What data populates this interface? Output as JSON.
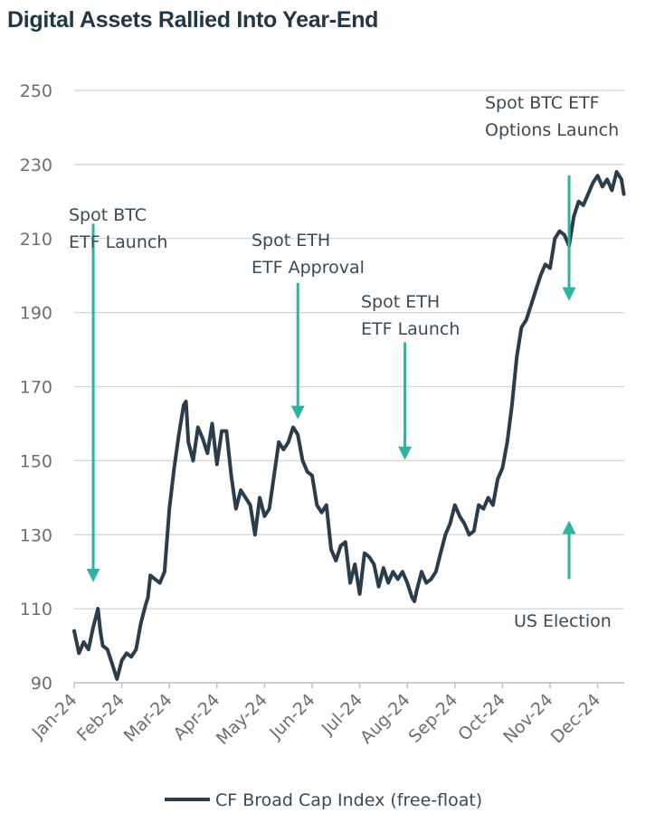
{
  "title": "Digital Assets Rallied Into Year-End",
  "chart_data": {
    "type": "line",
    "title": "Digital Assets Rallied Into Year-End",
    "ylim": [
      90,
      250
    ],
    "yticks": [
      90,
      110,
      130,
      150,
      170,
      190,
      210,
      230,
      250
    ],
    "grid": true,
    "xtick_labels": [
      "Jan-24",
      "Feb-24",
      "Mar-24",
      "Apr-24",
      "May-24",
      "Jun-24",
      "Jul-24",
      "Aug-24",
      "Sep-24",
      "Oct-24",
      "Nov-24",
      "Dec-24"
    ],
    "legend": {
      "position": "bottom-center",
      "entries": [
        "CF Broad Cap Index (free-float)"
      ]
    },
    "colors": {
      "line": "#2a3d4c",
      "arrow": "#2bb5a0",
      "grid": "#d4d4d4"
    },
    "series": [
      {
        "name": "CF Broad Cap Index (free-float)",
        "x": [
          0,
          0.1,
          0.2,
          0.3,
          0.4,
          0.5,
          0.55,
          0.6,
          0.7,
          0.8,
          0.9,
          1.0,
          1.1,
          1.2,
          1.3,
          1.4,
          1.5,
          1.55,
          1.6,
          1.7,
          1.8,
          1.9,
          2.0,
          2.1,
          2.2,
          2.3,
          2.35,
          2.4,
          2.5,
          2.6,
          2.7,
          2.8,
          2.9,
          3.0,
          3.1,
          3.2,
          3.3,
          3.4,
          3.5,
          3.6,
          3.7,
          3.8,
          3.9,
          4.0,
          4.1,
          4.2,
          4.3,
          4.4,
          4.5,
          4.6,
          4.7,
          4.8,
          4.9,
          5.0,
          5.1,
          5.2,
          5.3,
          5.4,
          5.5,
          5.6,
          5.7,
          5.8,
          5.9,
          6.0,
          6.1,
          6.2,
          6.3,
          6.4,
          6.5,
          6.6,
          6.7,
          6.8,
          6.9,
          7.0,
          7.1,
          7.15,
          7.2,
          7.3,
          7.4,
          7.5,
          7.6,
          7.7,
          7.8,
          7.9,
          8.0,
          8.1,
          8.2,
          8.3,
          8.4,
          8.5,
          8.6,
          8.7,
          8.8,
          8.9,
          9.0,
          9.1,
          9.2,
          9.3,
          9.4,
          9.5,
          9.6,
          9.7,
          9.8,
          9.9,
          10.0,
          10.1,
          10.2,
          10.3,
          10.4,
          10.5,
          10.6,
          10.7,
          10.8,
          10.9,
          11.0,
          11.1,
          11.2,
          11.3,
          11.4,
          11.5,
          11.55
        ],
        "values": [
          104,
          98,
          101,
          99,
          105,
          110,
          104,
          100,
          99,
          95,
          91,
          96,
          98,
          97,
          99,
          106,
          111,
          113,
          119,
          118,
          117,
          120,
          137,
          148,
          157,
          165,
          166,
          155,
          150,
          159,
          156,
          152,
          160,
          149,
          158,
          158,
          146,
          137,
          142,
          140,
          138,
          130,
          140,
          135,
          137,
          146,
          155,
          153,
          155,
          159,
          157,
          150,
          147,
          146,
          138,
          136,
          138,
          126,
          123,
          127,
          128,
          117,
          122,
          114,
          125,
          124,
          122,
          116,
          121,
          117,
          120,
          118,
          120,
          117,
          113,
          112,
          115,
          120,
          117,
          118,
          120,
          125,
          130,
          133,
          138,
          135,
          133,
          130,
          131,
          138,
          137,
          140,
          138,
          145,
          148,
          155,
          165,
          178,
          186,
          188,
          192,
          196,
          200,
          203,
          202,
          210,
          212,
          211,
          208,
          216,
          220,
          219,
          222,
          225,
          227,
          224,
          226,
          223,
          228,
          226,
          222
        ]
      }
    ],
    "annotations": [
      {
        "lines": [
          "Spot BTC",
          "ETF Launch"
        ],
        "x": 0.4,
        "y_from": 214,
        "y_to": 119,
        "direction": "down"
      },
      {
        "lines": [
          "Spot ETH",
          "ETF Approval"
        ],
        "x": 4.7,
        "y_from": 198,
        "y_to": 163,
        "direction": "down"
      },
      {
        "lines": [
          "Spot ETH",
          "ETF Launch"
        ],
        "x": 6.95,
        "y_from": 182,
        "y_to": 152,
        "direction": "down"
      },
      {
        "lines": [
          "Spot BTC ETF",
          "Options Launch"
        ],
        "x": 10.4,
        "y_from": 227,
        "y_to": 195,
        "direction": "down"
      },
      {
        "lines": [
          "US Election"
        ],
        "x": 10.4,
        "y_from": 118,
        "y_to": 132,
        "direction": "up"
      }
    ]
  }
}
